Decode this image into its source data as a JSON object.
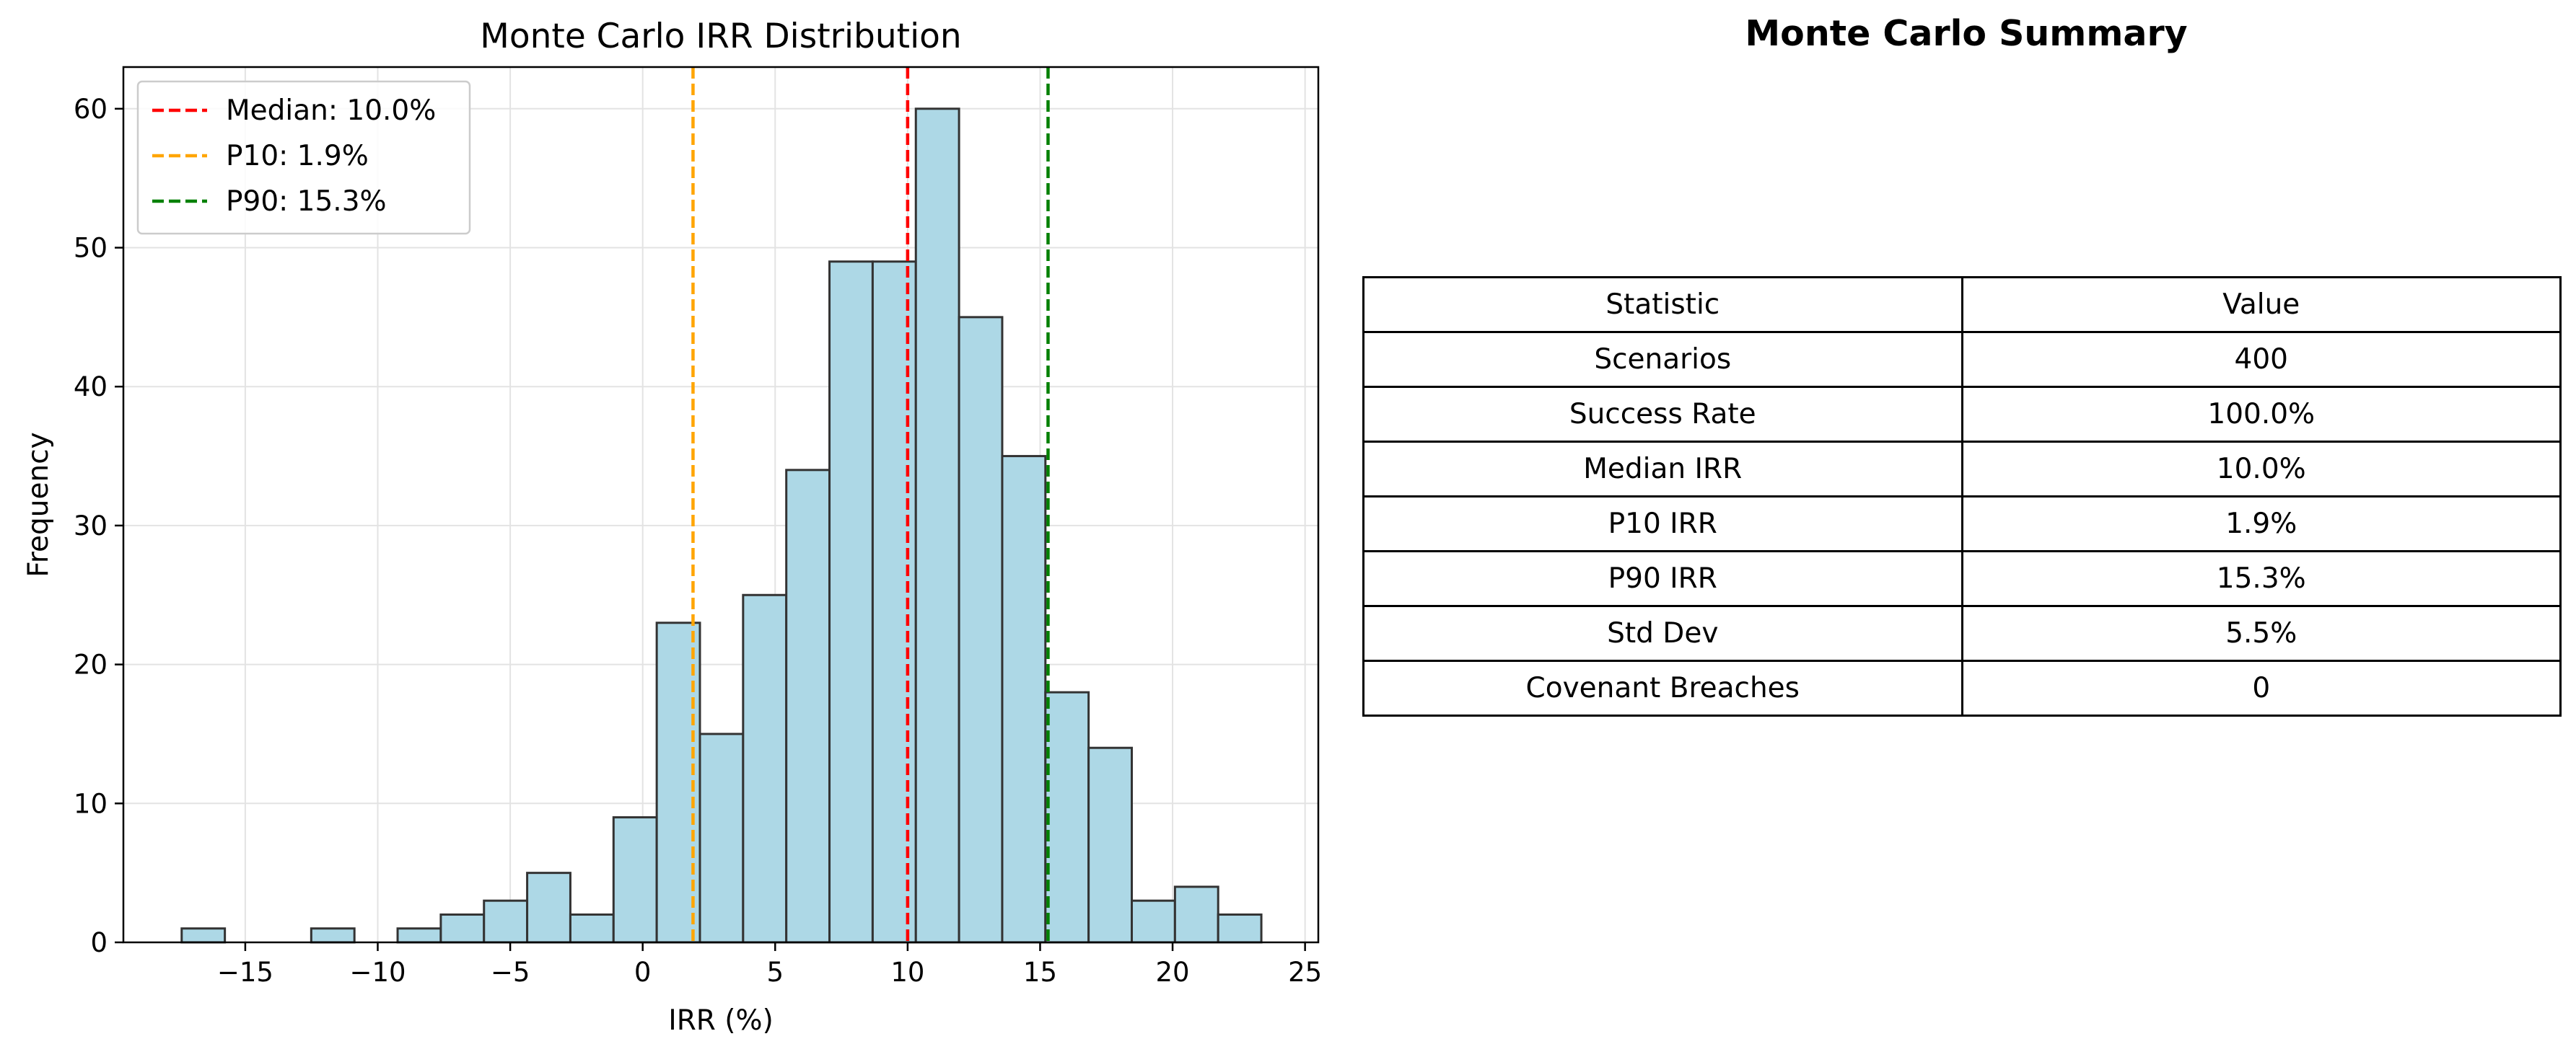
{
  "chart_data": [
    {
      "type": "histogram",
      "title": "Monte Carlo IRR Distribution",
      "xlabel": "IRR (%)",
      "ylabel": "Frequency",
      "xlim": [
        -19.6,
        25.5
      ],
      "ylim": [
        0,
        63
      ],
      "xticks": [
        -15,
        -10,
        -5,
        0,
        5,
        10,
        15,
        20,
        25
      ],
      "yticks": [
        0,
        10,
        20,
        30,
        40,
        50,
        60
      ],
      "grid": true,
      "bar_color": "#add8e6",
      "bar_edge_color": "#333333",
      "bin_start": -17.4,
      "bin_width": 1.63,
      "counts": [
        1,
        0,
        0,
        1,
        0,
        1,
        2,
        3,
        5,
        2,
        9,
        23,
        15,
        25,
        34,
        49,
        49,
        60,
        45,
        35,
        18,
        14,
        3,
        4,
        2
      ],
      "vlines": [
        {
          "name": "Median: 10.0%",
          "x": 10.0,
          "color": "#ff0000"
        },
        {
          "name": "P10: 1.9%",
          "x": 1.9,
          "color": "#ffa500"
        },
        {
          "name": "P90: 15.3%",
          "x": 15.3,
          "color": "#008000"
        }
      ],
      "legend_position": "top-left"
    },
    {
      "type": "table",
      "title": "Monte Carlo Summary",
      "header": [
        "Statistic",
        "Value"
      ],
      "rows": [
        [
          "Scenarios",
          "400"
        ],
        [
          "Success Rate",
          "100.0%"
        ],
        [
          "Median IRR",
          "10.0%"
        ],
        [
          "P10 IRR",
          "1.9%"
        ],
        [
          "P90 IRR",
          "15.3%"
        ],
        [
          "Std Dev",
          "5.5%"
        ],
        [
          "Covenant Breaches",
          "0"
        ]
      ]
    }
  ]
}
